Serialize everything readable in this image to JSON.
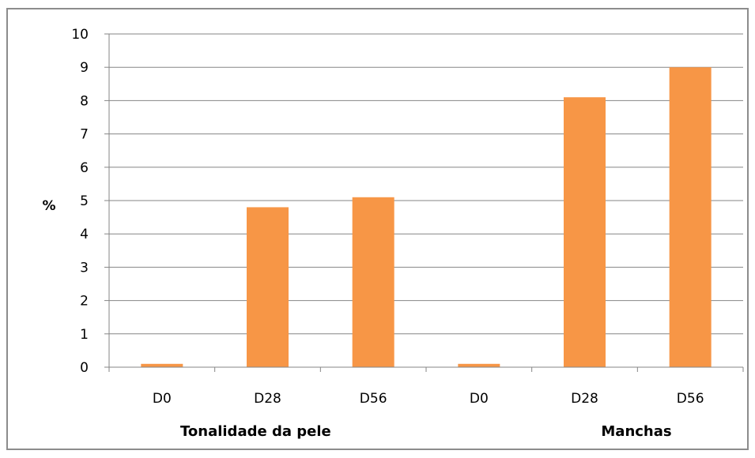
{
  "chart_data": {
    "type": "bar",
    "ylabel": "%",
    "ylim": [
      0,
      10
    ],
    "yticks": [
      0,
      1,
      2,
      3,
      4,
      5,
      6,
      7,
      8,
      9,
      10
    ],
    "grid": true,
    "categories": [
      "D0",
      "D28",
      "D56",
      "D0",
      "D28",
      "D56"
    ],
    "groups": [
      {
        "label": "Tonalidade da pele",
        "categories": [
          "D0",
          "D28",
          "D56"
        ]
      },
      {
        "label": "Manchas",
        "categories": [
          "D0",
          "D28",
          "D56"
        ]
      }
    ],
    "values": [
      0.1,
      4.8,
      5.1,
      0.1,
      8.1,
      9.0
    ],
    "bar_color": "#F79646",
    "grid_color": "#868686"
  }
}
